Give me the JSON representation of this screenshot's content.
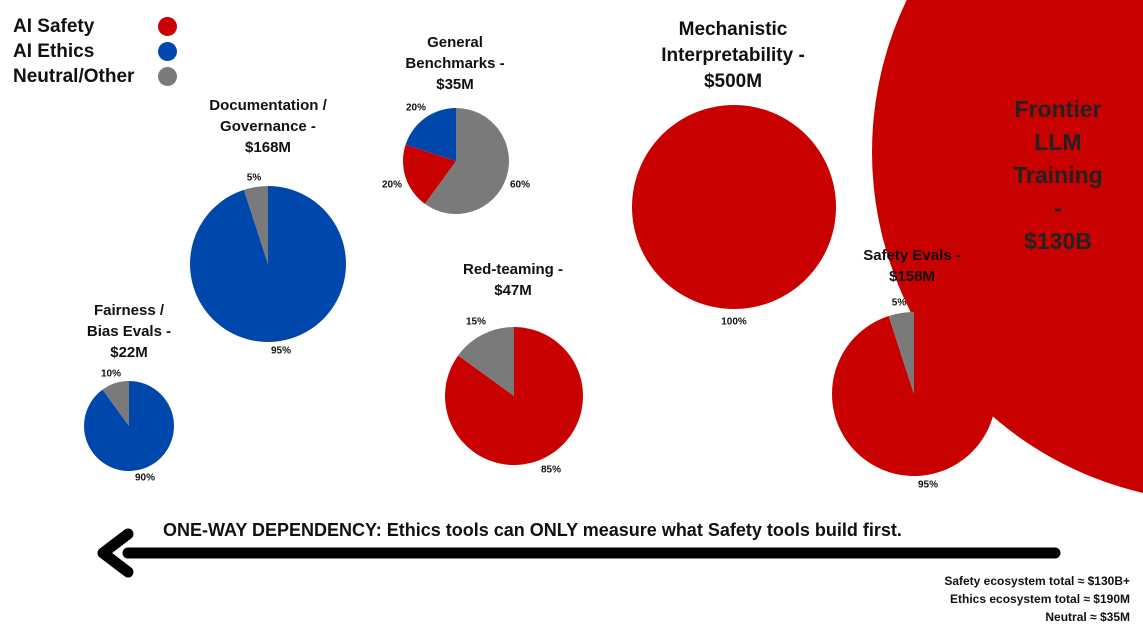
{
  "legend": [
    {
      "label": "AI Safety",
      "color": "#c80000"
    },
    {
      "label": "AI Ethics",
      "color": "#0047ab"
    },
    {
      "label": "Neutral/Other",
      "color": "#7a7a7a"
    }
  ],
  "chart_data": {
    "type": "pie",
    "title": "",
    "colors": {
      "safety": "#c80000",
      "ethics": "#0047ab",
      "neutral": "#7a7a7a"
    },
    "pies": [
      {
        "name": "Fairness / Bias Evals",
        "label_lines": [
          "Fairness /",
          "Bias Evals -",
          "$22M"
        ],
        "funding": "$22M",
        "slices": [
          {
            "category": "ethics",
            "percent": 90
          },
          {
            "category": "neutral",
            "percent": 10
          }
        ]
      },
      {
        "name": "Documentation / Governance",
        "label_lines": [
          "Documentation /",
          "Governance -",
          "$168M"
        ],
        "funding": "$168M",
        "slices": [
          {
            "category": "ethics",
            "percent": 95
          },
          {
            "category": "neutral",
            "percent": 5
          }
        ]
      },
      {
        "name": "General Benchmarks",
        "label_lines": [
          "General",
          "Benchmarks -",
          "$35M"
        ],
        "funding": "$35M",
        "slices": [
          {
            "category": "neutral",
            "percent": 60
          },
          {
            "category": "safety",
            "percent": 20
          },
          {
            "category": "ethics",
            "percent": 20
          }
        ]
      },
      {
        "name": "Red-teaming",
        "label_lines": [
          "Red-teaming -",
          "$47M"
        ],
        "funding": "$47M",
        "slices": [
          {
            "category": "safety",
            "percent": 85
          },
          {
            "category": "neutral",
            "percent": 15
          }
        ]
      },
      {
        "name": "Mechanistic Interpretability",
        "label_lines": [
          "Mechanistic",
          "Interpretability -",
          "$500M"
        ],
        "funding": "$500M",
        "slices": [
          {
            "category": "safety",
            "percent": 100
          }
        ]
      },
      {
        "name": "Safety Evals",
        "label_lines": [
          "Safety Evals -",
          "$158M"
        ],
        "funding": "$158M",
        "slices": [
          {
            "category": "safety",
            "percent": 95
          },
          {
            "category": "neutral",
            "percent": 5
          }
        ]
      },
      {
        "name": "Frontier LLM Training",
        "label_lines": [
          "Frontier",
          "LLM Training -",
          "$130B"
        ],
        "funding": "$130B",
        "slices": [
          {
            "category": "safety",
            "percent": 100
          }
        ]
      }
    ],
    "annotation": "ONE-WAY DEPENDENCY: Ethics tools can ONLY measure what Safety tools build first.",
    "arrow_direction": "left"
  },
  "totals": [
    "Safety ecosystem total ≈ $130B+",
    "Ethics ecosystem total ≈  $190M",
    "Neutral ≈    $35M"
  ]
}
